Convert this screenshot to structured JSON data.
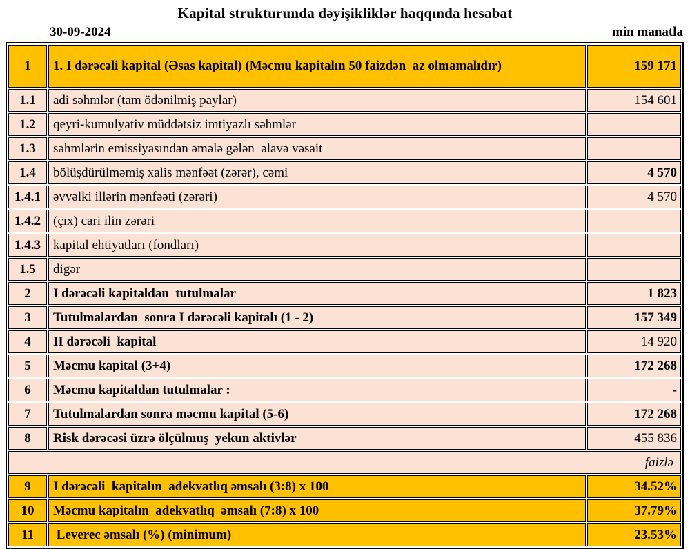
{
  "title": "Kapital strukturunda dəyişikliklər haqqında hesabat",
  "date": "30-09-2024",
  "unit_label": "min manatla",
  "colors": {
    "highlight_gold": "#FFC000",
    "row_peach": "#FBE2D5",
    "border_black": "#000000"
  },
  "table": {
    "rows": [
      {
        "no": "1",
        "label": "1. I dərəcəli kapital (Əsas kapital) (Məcmu kapitalın 50 faizdən  az olmamalıdır)",
        "value": "159 171",
        "highlight": true,
        "label_bold": true,
        "value_bold": true,
        "tall": true
      },
      {
        "no": "1.1",
        "label": "adi səhmlər (tam ödənilmiş paylar)",
        "value": "154 601",
        "highlight": false,
        "label_bold": false,
        "value_bold": false
      },
      {
        "no": "1.2",
        "label": "qeyri-kumulyativ müddətsiz imtiyazlı səhmlər",
        "value": "",
        "highlight": false,
        "label_bold": false,
        "value_bold": false
      },
      {
        "no": "1.3",
        "label": "səhmlərin emissiyasından əmələ gələn  əlavə vəsait",
        "value": "",
        "highlight": false,
        "label_bold": false,
        "value_bold": false
      },
      {
        "no": "1.4",
        "label": "bölüşdürülməmiş xalis mənfəət (zərər), cəmi",
        "value": "4 570",
        "highlight": false,
        "label_bold": false,
        "value_bold": true
      },
      {
        "no": "1.4.1",
        "label": "əvvəlki illərin mənfəəti (zərəri)",
        "value": "4 570",
        "highlight": false,
        "label_bold": false,
        "value_bold": false
      },
      {
        "no": "1.4.2",
        "label": "(çıx) cari ilin zərəri",
        "value": "",
        "highlight": false,
        "label_bold": false,
        "value_bold": false
      },
      {
        "no": "1.4.3",
        "label": "kapital ehtiyatları (fondları)",
        "value": "",
        "highlight": false,
        "label_bold": false,
        "value_bold": false
      },
      {
        "no": "1.5",
        "label": "digər",
        "value": "",
        "highlight": false,
        "label_bold": false,
        "value_bold": false
      },
      {
        "no": "2",
        "label": "I dərəcəli kapitaldan  tutulmalar",
        "value": "1 823",
        "highlight": false,
        "label_bold": true,
        "value_bold": true
      },
      {
        "no": "3",
        "label": "Tutulmalardan  sonra I dərəcəli kapitalı (1 - 2)",
        "value": "157 349",
        "highlight": false,
        "label_bold": true,
        "value_bold": true
      },
      {
        "no": "4",
        "label": "II dərəcəli  kapital",
        "value": "14 920",
        "highlight": false,
        "label_bold": true,
        "value_bold": false
      },
      {
        "no": "5",
        "label": "Məcmu kapital (3+4)",
        "value": "172 268",
        "highlight": false,
        "label_bold": true,
        "value_bold": true
      },
      {
        "no": "6",
        "label": "Məcmu kapitaldan tutulmalar :",
        "value": "-",
        "highlight": false,
        "label_bold": true,
        "value_bold": true
      },
      {
        "no": "7",
        "label": "Tutulmalardan sonra məcmu kapital (5-6)",
        "value": "172 268",
        "highlight": false,
        "label_bold": true,
        "value_bold": true
      },
      {
        "no": "8",
        "label": "Risk dərəcəsi üzrə ölçülmuş  yekun aktivlər",
        "value": "455 836",
        "highlight": false,
        "label_bold": true,
        "value_bold": false
      },
      {
        "type": "separator",
        "label": "faizlə"
      },
      {
        "no": "9",
        "label": "I dərəcəli  kapitalın  adekvatlıq əmsalı (3:8) x 100",
        "value": "34.52%",
        "highlight": true,
        "label_bold": true,
        "value_bold": true
      },
      {
        "no": "10",
        "label": "Məcmu kapitalın  adekvatlıq  əmsalı (7:8) x 100",
        "value": "37.79%",
        "highlight": true,
        "label_bold": true,
        "value_bold": true
      },
      {
        "no": "11",
        "label": " Leverec əmsalı (%) (minimum)",
        "value": "23.53%",
        "highlight": true,
        "label_bold": true,
        "value_bold": true
      }
    ]
  }
}
